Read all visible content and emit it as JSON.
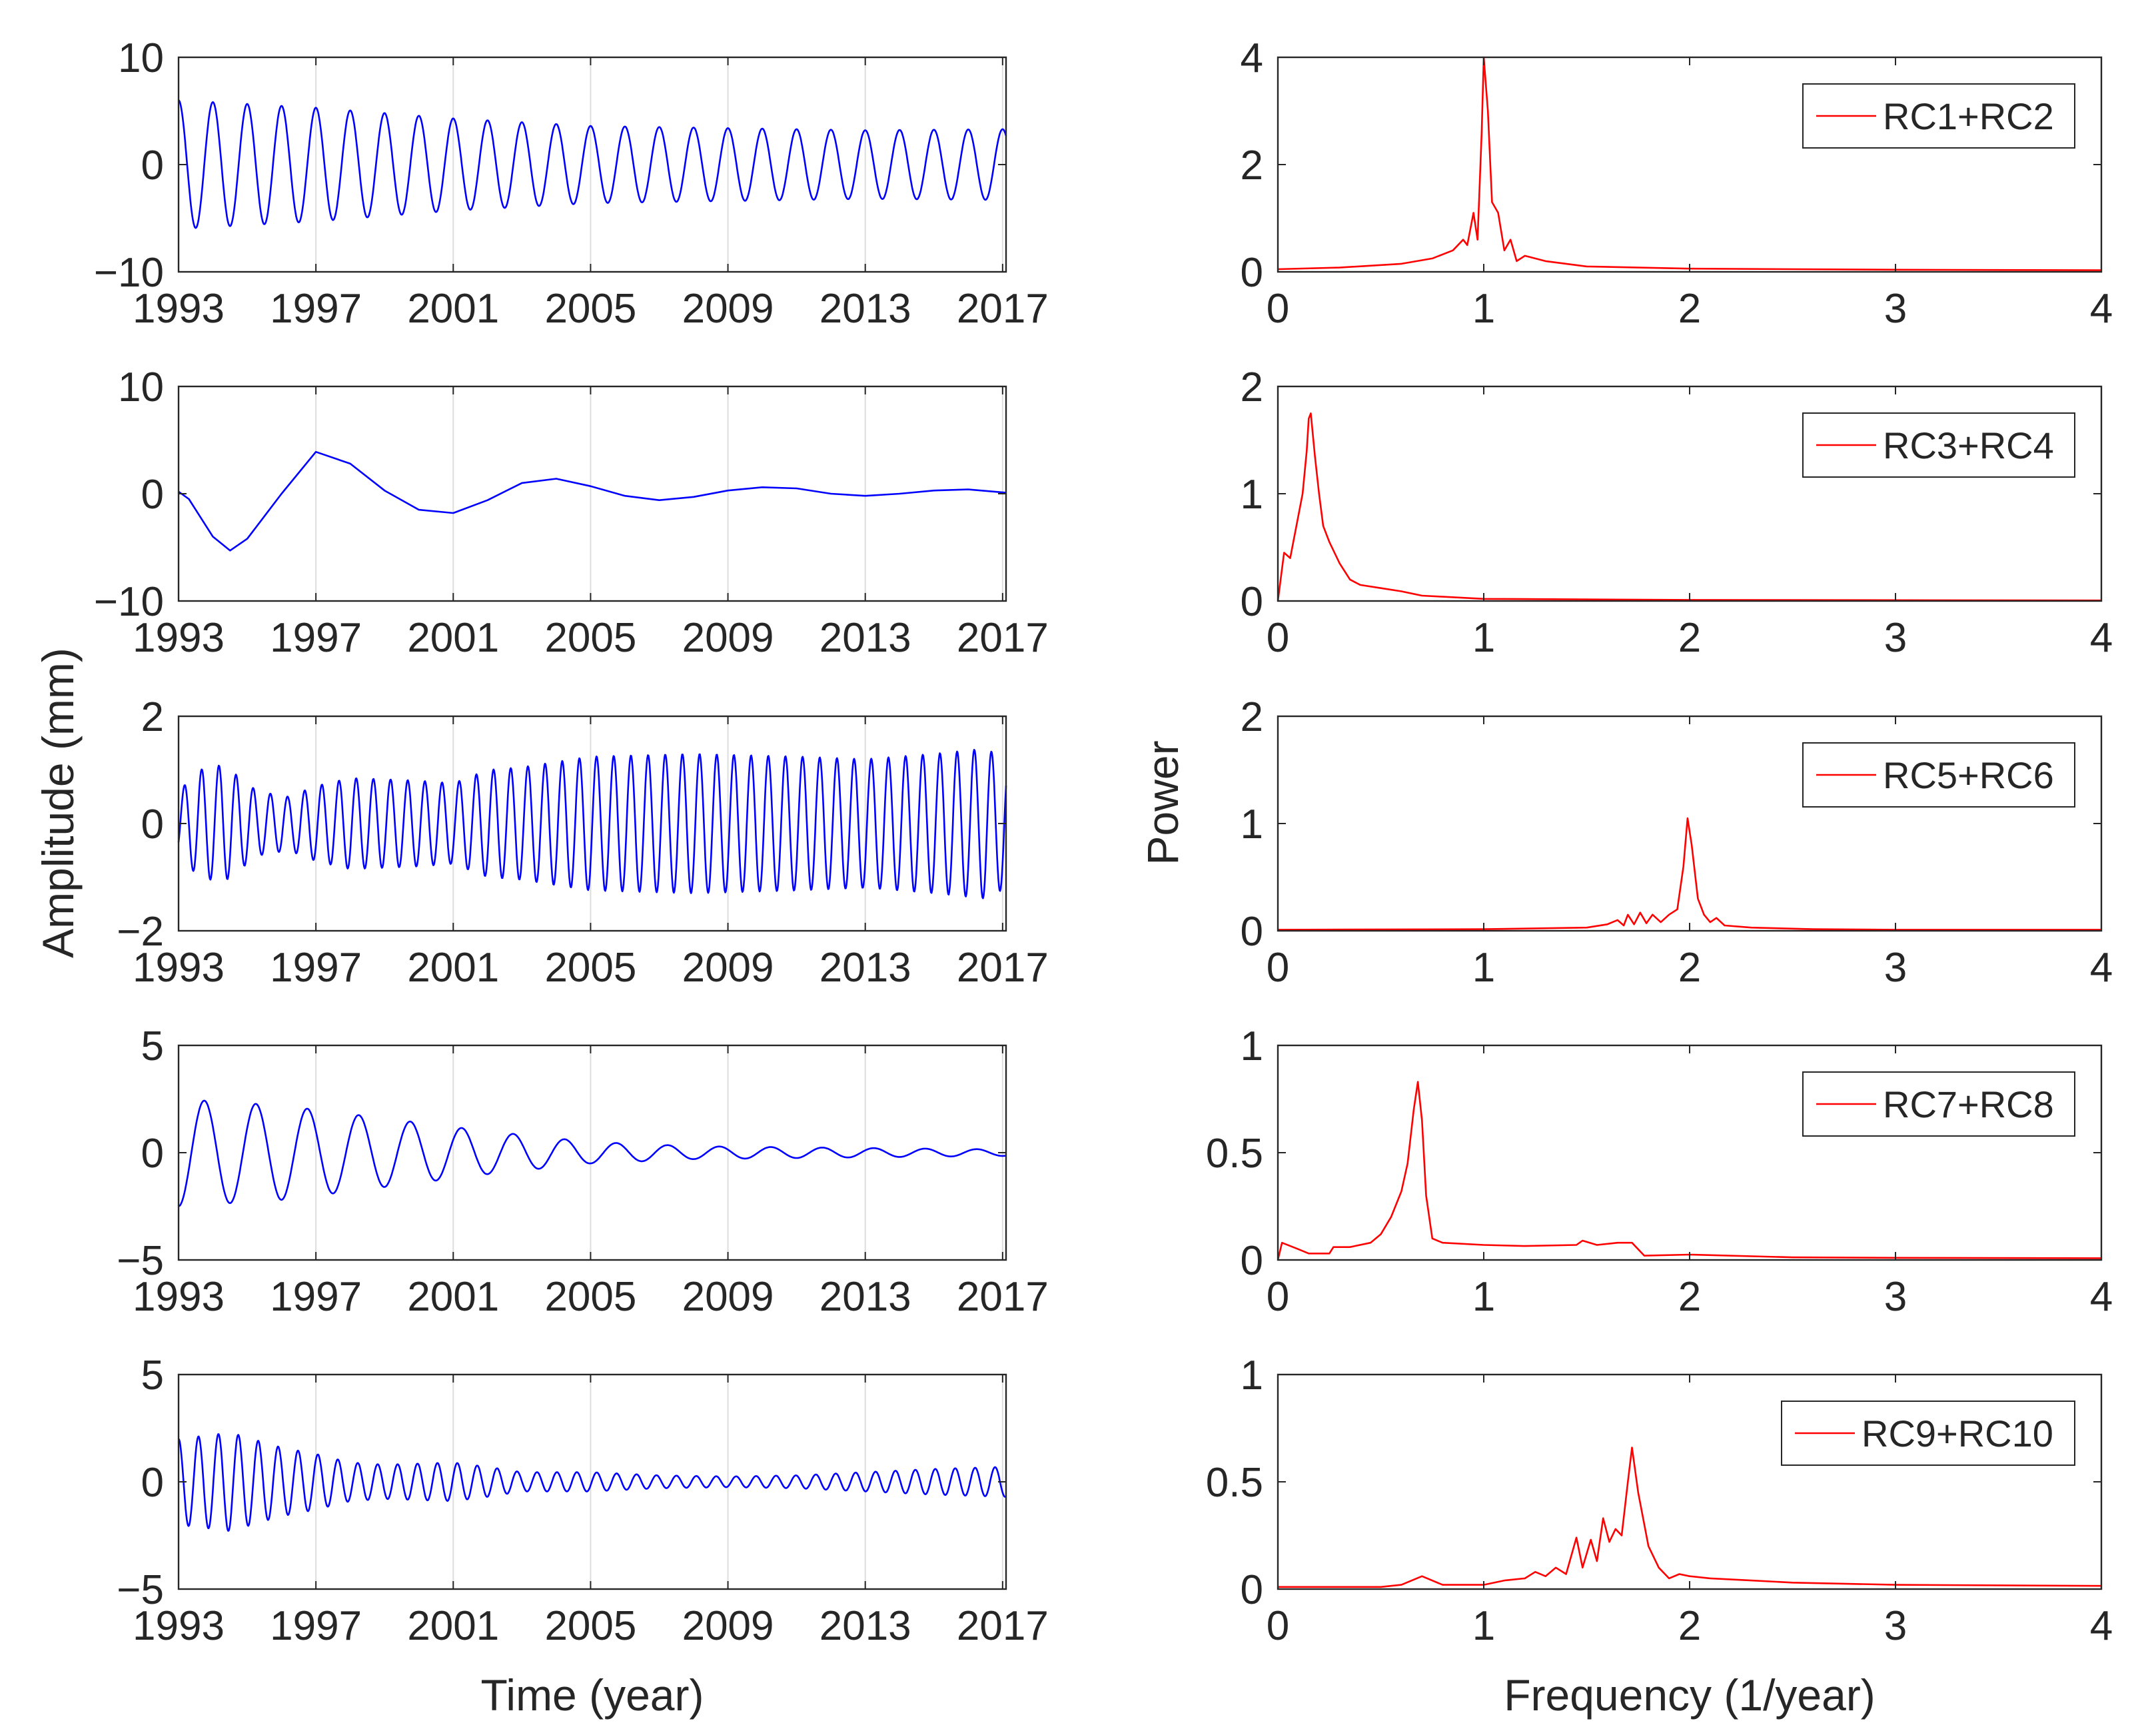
{
  "figure": {
    "left_ylabel": "Amplitude (mm)",
    "right_ylabel": "Power"
  },
  "chart_data": [
    {
      "panel": "time-1",
      "type": "line",
      "xlabel": "",
      "ylabel": "",
      "xlim": [
        1993,
        2017.1
      ],
      "ylim": [
        -10,
        10
      ],
      "xticks": [
        1993,
        1997,
        2001,
        2005,
        2009,
        2013,
        2017
      ],
      "xtick_labels": [
        "1993",
        "1997",
        "2001",
        "2005",
        "2009",
        "2013",
        "2017"
      ],
      "yticks": [
        -10,
        0,
        10
      ],
      "ytick_labels": [
        "−10",
        "0",
        "10"
      ],
      "grid": "vertical",
      "color": "#0000ff",
      "signal": {
        "kind": "sine",
        "period": 1.0,
        "phase": 1993.0,
        "cos": true,
        "amp_points": [
          [
            1993,
            6.0
          ],
          [
            1997,
            5.3
          ],
          [
            2001,
            4.3
          ],
          [
            2005,
            3.6
          ],
          [
            2009,
            3.4
          ],
          [
            2013,
            3.2
          ],
          [
            2017.1,
            3.3
          ]
        ]
      }
    },
    {
      "panel": "spectrum-1",
      "type": "line",
      "xlabel": "",
      "ylabel": "",
      "xlim": [
        0,
        4
      ],
      "ylim": [
        0,
        4
      ],
      "xticks": [
        0,
        1,
        2,
        3,
        4
      ],
      "xtick_labels": [
        "0",
        "1",
        "2",
        "3",
        "4"
      ],
      "yticks": [
        0,
        2,
        4
      ],
      "ytick_labels": [
        "0",
        "2",
        "4"
      ],
      "color": "#ff0000",
      "legend": "RC1+RC2",
      "points": [
        [
          0,
          0.05
        ],
        [
          0.3,
          0.08
        ],
        [
          0.6,
          0.15
        ],
        [
          0.75,
          0.25
        ],
        [
          0.85,
          0.4
        ],
        [
          0.9,
          0.6
        ],
        [
          0.92,
          0.5
        ],
        [
          0.95,
          1.1
        ],
        [
          0.97,
          0.6
        ],
        [
          0.99,
          2.6
        ],
        [
          1.0,
          4.0
        ],
        [
          1.02,
          3.0
        ],
        [
          1.04,
          1.3
        ],
        [
          1.07,
          1.1
        ],
        [
          1.1,
          0.4
        ],
        [
          1.13,
          0.6
        ],
        [
          1.16,
          0.2
        ],
        [
          1.2,
          0.3
        ],
        [
          1.3,
          0.2
        ],
        [
          1.5,
          0.1
        ],
        [
          2.0,
          0.06
        ],
        [
          3.0,
          0.04
        ],
        [
          4.0,
          0.03
        ]
      ]
    },
    {
      "panel": "time-2",
      "type": "line",
      "xlabel": "",
      "ylabel": "",
      "xlim": [
        1993,
        2017.1
      ],
      "ylim": [
        -10,
        10
      ],
      "xticks": [
        1993,
        1997,
        2001,
        2005,
        2009,
        2013,
        2017
      ],
      "xtick_labels": [
        "1993",
        "1997",
        "2001",
        "2005",
        "2009",
        "2013",
        "2017"
      ],
      "yticks": [
        -10,
        0,
        10
      ],
      "ytick_labels": [
        "−10",
        "0",
        "10"
      ],
      "grid": "vertical",
      "color": "#0000ff",
      "points": [
        [
          1993,
          0.2
        ],
        [
          1993.3,
          -0.5
        ],
        [
          1994.0,
          -4.0
        ],
        [
          1994.5,
          -5.3
        ],
        [
          1995.0,
          -4.2
        ],
        [
          1996.0,
          0.0
        ],
        [
          1997.0,
          3.9
        ],
        [
          1998.0,
          2.8
        ],
        [
          1999.0,
          0.3
        ],
        [
          2000.0,
          -1.5
        ],
        [
          2001.0,
          -1.8
        ],
        [
          2002.0,
          -0.6
        ],
        [
          2003.0,
          1.0
        ],
        [
          2004.0,
          1.4
        ],
        [
          2005.0,
          0.7
        ],
        [
          2006.0,
          -0.2
        ],
        [
          2007.0,
          -0.6
        ],
        [
          2008.0,
          -0.3
        ],
        [
          2009.0,
          0.3
        ],
        [
          2010.0,
          0.6
        ],
        [
          2011.0,
          0.5
        ],
        [
          2012.0,
          0.0
        ],
        [
          2013.0,
          -0.2
        ],
        [
          2014.0,
          0.0
        ],
        [
          2015.0,
          0.3
        ],
        [
          2016.0,
          0.4
        ],
        [
          2017.1,
          0.1
        ]
      ]
    },
    {
      "panel": "spectrum-2",
      "type": "line",
      "xlabel": "",
      "ylabel": "",
      "xlim": [
        0,
        4
      ],
      "ylim": [
        0,
        2
      ],
      "xticks": [
        0,
        1,
        2,
        3,
        4
      ],
      "xtick_labels": [
        "0",
        "1",
        "2",
        "3",
        "4"
      ],
      "yticks": [
        0,
        1,
        2
      ],
      "ytick_labels": [
        "0",
        "1",
        "2"
      ],
      "color": "#ff0000",
      "legend": "RC3+RC4",
      "points": [
        [
          0,
          0.0
        ],
        [
          0.03,
          0.45
        ],
        [
          0.06,
          0.4
        ],
        [
          0.08,
          0.6
        ],
        [
          0.1,
          0.8
        ],
        [
          0.12,
          1.0
        ],
        [
          0.14,
          1.4
        ],
        [
          0.15,
          1.7
        ],
        [
          0.16,
          1.75
        ],
        [
          0.18,
          1.35
        ],
        [
          0.2,
          1.0
        ],
        [
          0.22,
          0.7
        ],
        [
          0.25,
          0.55
        ],
        [
          0.3,
          0.35
        ],
        [
          0.35,
          0.2
        ],
        [
          0.4,
          0.15
        ],
        [
          0.5,
          0.12
        ],
        [
          0.6,
          0.09
        ],
        [
          0.7,
          0.05
        ],
        [
          0.8,
          0.04
        ],
        [
          1.0,
          0.02
        ],
        [
          2.0,
          0.01
        ],
        [
          4.0,
          0.005
        ]
      ]
    },
    {
      "panel": "time-3",
      "type": "line",
      "xlabel": "",
      "ylabel": "",
      "xlim": [
        1993,
        2017.1
      ],
      "ylim": [
        -2,
        2
      ],
      "xticks": [
        1993,
        1997,
        2001,
        2005,
        2009,
        2013,
        2017
      ],
      "xtick_labels": [
        "1993",
        "1997",
        "2001",
        "2005",
        "2009",
        "2013",
        "2017"
      ],
      "yticks": [
        -2,
        0,
        2
      ],
      "ytick_labels": [
        "−2",
        "0",
        "2"
      ],
      "grid": "vertical",
      "color": "#0000ff",
      "signal": {
        "kind": "sine",
        "period": 0.5,
        "phase": 1993.05,
        "cos": false,
        "amp_points": [
          [
            1993,
            0.6
          ],
          [
            1993.6,
            1.0
          ],
          [
            1994.3,
            1.1
          ],
          [
            1995.3,
            0.6
          ],
          [
            1996.2,
            0.5
          ],
          [
            1997.0,
            0.7
          ],
          [
            1998.0,
            0.85
          ],
          [
            2000.0,
            0.8
          ],
          [
            2001.0,
            0.75
          ],
          [
            2002.0,
            1.0
          ],
          [
            2003.0,
            1.05
          ],
          [
            2004.0,
            1.15
          ],
          [
            2005.0,
            1.25
          ],
          [
            2008.0,
            1.3
          ],
          [
            2011.0,
            1.25
          ],
          [
            2013.0,
            1.2
          ],
          [
            2015.0,
            1.3
          ],
          [
            2016.5,
            1.4
          ],
          [
            2017.1,
            1.2
          ]
        ]
      }
    },
    {
      "panel": "spectrum-3",
      "type": "line",
      "xlabel": "",
      "ylabel": "Power",
      "xlim": [
        0,
        4
      ],
      "ylim": [
        0,
        2
      ],
      "xticks": [
        0,
        1,
        2,
        3,
        4
      ],
      "xtick_labels": [
        "0",
        "1",
        "2",
        "3",
        "4"
      ],
      "yticks": [
        0,
        1,
        2
      ],
      "ytick_labels": [
        "0",
        "1",
        "2"
      ],
      "color": "#ff0000",
      "legend": "RC5+RC6",
      "points": [
        [
          0,
          0.01
        ],
        [
          1.0,
          0.015
        ],
        [
          1.5,
          0.03
        ],
        [
          1.6,
          0.06
        ],
        [
          1.65,
          0.1
        ],
        [
          1.68,
          0.05
        ],
        [
          1.7,
          0.15
        ],
        [
          1.73,
          0.06
        ],
        [
          1.76,
          0.17
        ],
        [
          1.79,
          0.07
        ],
        [
          1.82,
          0.15
        ],
        [
          1.86,
          0.08
        ],
        [
          1.9,
          0.15
        ],
        [
          1.94,
          0.2
        ],
        [
          1.97,
          0.6
        ],
        [
          1.99,
          1.05
        ],
        [
          2.01,
          0.8
        ],
        [
          2.04,
          0.3
        ],
        [
          2.07,
          0.15
        ],
        [
          2.1,
          0.08
        ],
        [
          2.13,
          0.12
        ],
        [
          2.17,
          0.05
        ],
        [
          2.3,
          0.03
        ],
        [
          2.6,
          0.015
        ],
        [
          3.0,
          0.01
        ],
        [
          4.0,
          0.01
        ]
      ]
    },
    {
      "panel": "time-4",
      "type": "line",
      "xlabel": "",
      "ylabel": "",
      "xlim": [
        1993,
        2017.1
      ],
      "ylim": [
        -5,
        5
      ],
      "xticks": [
        1993,
        1997,
        2001,
        2005,
        2009,
        2013,
        2017
      ],
      "xtick_labels": [
        "1993",
        "1997",
        "2001",
        "2005",
        "2009",
        "2013",
        "2017"
      ],
      "yticks": [
        -5,
        0,
        5
      ],
      "ytick_labels": [
        "−5",
        "0",
        "5"
      ],
      "grid": "vertical",
      "color": "#0000ff",
      "signal": {
        "kind": "sine",
        "period": 1.5,
        "phase": 1993.0,
        "cos": true,
        "flip": true,
        "amp_points": [
          [
            1993,
            2.5
          ],
          [
            1996,
            2.2
          ],
          [
            1999,
            1.6
          ],
          [
            2002,
            1.0
          ],
          [
            2005,
            0.5
          ],
          [
            2008,
            0.3
          ],
          [
            2011,
            0.25
          ],
          [
            2014,
            0.2
          ],
          [
            2017.1,
            0.15
          ]
        ]
      }
    },
    {
      "panel": "spectrum-4",
      "type": "line",
      "xlabel": "",
      "ylabel": "",
      "xlim": [
        0,
        4
      ],
      "ylim": [
        0,
        1
      ],
      "xticks": [
        0,
        1,
        2,
        3,
        4
      ],
      "xtick_labels": [
        "0",
        "1",
        "2",
        "3",
        "4"
      ],
      "yticks": [
        0,
        0.5,
        1
      ],
      "ytick_labels": [
        "0",
        "0.5",
        "1"
      ],
      "color": "#ff0000",
      "legend": "RC7+RC8",
      "points": [
        [
          0,
          0.0
        ],
        [
          0.02,
          0.08
        ],
        [
          0.1,
          0.05
        ],
        [
          0.15,
          0.03
        ],
        [
          0.25,
          0.03
        ],
        [
          0.27,
          0.06
        ],
        [
          0.35,
          0.06
        ],
        [
          0.45,
          0.08
        ],
        [
          0.5,
          0.12
        ],
        [
          0.55,
          0.2
        ],
        [
          0.6,
          0.32
        ],
        [
          0.63,
          0.45
        ],
        [
          0.66,
          0.7
        ],
        [
          0.68,
          0.83
        ],
        [
          0.7,
          0.65
        ],
        [
          0.72,
          0.3
        ],
        [
          0.75,
          0.1
        ],
        [
          0.8,
          0.08
        ],
        [
          1.0,
          0.07
        ],
        [
          1.2,
          0.065
        ],
        [
          1.45,
          0.07
        ],
        [
          1.48,
          0.09
        ],
        [
          1.55,
          0.07
        ],
        [
          1.65,
          0.08
        ],
        [
          1.72,
          0.08
        ],
        [
          1.78,
          0.02
        ],
        [
          2.0,
          0.025
        ],
        [
          2.5,
          0.012
        ],
        [
          3.0,
          0.01
        ],
        [
          4.0,
          0.008
        ]
      ]
    },
    {
      "panel": "time-5",
      "type": "line",
      "xlabel": "Time (year)",
      "ylabel": "",
      "xlim": [
        1993,
        2017.1
      ],
      "ylim": [
        -5,
        5
      ],
      "xticks": [
        1993,
        1997,
        2001,
        2005,
        2009,
        2013,
        2017
      ],
      "xtick_labels": [
        "1993",
        "1997",
        "2001",
        "2005",
        "2009",
        "2013",
        "2017"
      ],
      "yticks": [
        -5,
        0,
        5
      ],
      "ytick_labels": [
        "−5",
        "0",
        "5"
      ],
      "grid": "vertical",
      "color": "#0000ff",
      "signal": {
        "kind": "sine",
        "period": 0.58,
        "phase": 1993.0,
        "cos": true,
        "amp_points": [
          [
            1993,
            2.0
          ],
          [
            1994.5,
            2.3
          ],
          [
            1996,
            1.6
          ],
          [
            1997,
            1.3
          ],
          [
            1998,
            0.9
          ],
          [
            1999,
            0.8
          ],
          [
            2001,
            0.9
          ],
          [
            2002,
            0.7
          ],
          [
            2003,
            0.45
          ],
          [
            2005,
            0.45
          ],
          [
            2007,
            0.3
          ],
          [
            2009,
            0.25
          ],
          [
            2011,
            0.3
          ],
          [
            2013,
            0.45
          ],
          [
            2015,
            0.6
          ],
          [
            2017.1,
            0.7
          ]
        ]
      }
    },
    {
      "panel": "spectrum-5",
      "type": "line",
      "xlabel": "Frequency (1/year)",
      "ylabel": "",
      "xlim": [
        0,
        4
      ],
      "ylim": [
        0,
        1
      ],
      "xticks": [
        0,
        1,
        2,
        3,
        4
      ],
      "xtick_labels": [
        "0",
        "1",
        "2",
        "3",
        "4"
      ],
      "yticks": [
        0,
        0.5,
        1
      ],
      "ytick_labels": [
        "0",
        "0.5",
        "1"
      ],
      "color": "#ff0000",
      "legend": "RC9+RC10",
      "points": [
        [
          0,
          0.01
        ],
        [
          0.5,
          0.01
        ],
        [
          0.6,
          0.02
        ],
        [
          0.7,
          0.06
        ],
        [
          0.8,
          0.02
        ],
        [
          1.0,
          0.02
        ],
        [
          1.1,
          0.04
        ],
        [
          1.2,
          0.05
        ],
        [
          1.25,
          0.08
        ],
        [
          1.3,
          0.06
        ],
        [
          1.35,
          0.1
        ],
        [
          1.4,
          0.07
        ],
        [
          1.45,
          0.24
        ],
        [
          1.48,
          0.1
        ],
        [
          1.52,
          0.23
        ],
        [
          1.55,
          0.13
        ],
        [
          1.58,
          0.33
        ],
        [
          1.61,
          0.22
        ],
        [
          1.64,
          0.28
        ],
        [
          1.67,
          0.25
        ],
        [
          1.7,
          0.5
        ],
        [
          1.72,
          0.66
        ],
        [
          1.75,
          0.45
        ],
        [
          1.8,
          0.2
        ],
        [
          1.85,
          0.1
        ],
        [
          1.9,
          0.05
        ],
        [
          1.95,
          0.07
        ],
        [
          2.0,
          0.06
        ],
        [
          2.1,
          0.05
        ],
        [
          2.3,
          0.04
        ],
        [
          2.5,
          0.03
        ],
        [
          3.0,
          0.02
        ],
        [
          4.0,
          0.015
        ]
      ]
    }
  ]
}
